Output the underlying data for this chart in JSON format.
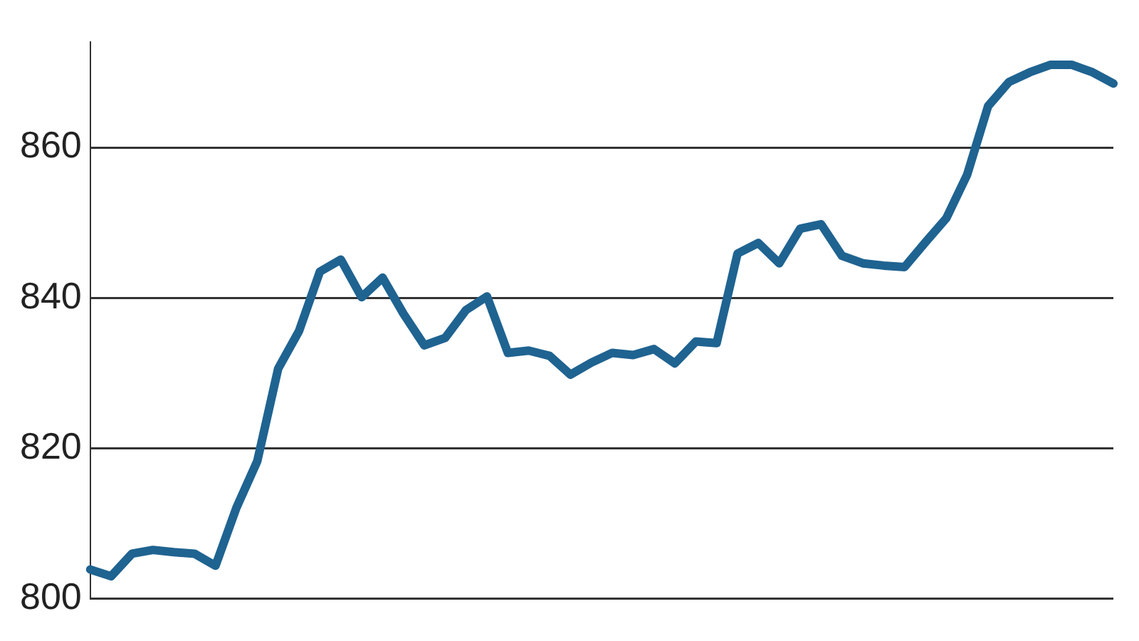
{
  "chart_data": {
    "type": "line",
    "categories": [
      null,
      null,
      null,
      null,
      null,
      null,
      null,
      null,
      null,
      null,
      null,
      null,
      null,
      null,
      null,
      null,
      null,
      null,
      null,
      null,
      null,
      null,
      null,
      null,
      null,
      null,
      null,
      null,
      null,
      null,
      null,
      null,
      null,
      null,
      null,
      null,
      null,
      null,
      null,
      null,
      null,
      null,
      null,
      null,
      null,
      null,
      null,
      null,
      null,
      null
    ],
    "series": [
      {
        "color": "#1f6391",
        "values": [
          803.9,
          803.0,
          806.0,
          806.5,
          806.2,
          806.0,
          804.4,
          812.1,
          818.3,
          830.6,
          835.6,
          843.5,
          845.1,
          840.1,
          842.7,
          837.9,
          833.7,
          834.7,
          838.4,
          840.2,
          832.7,
          833.0,
          832.3,
          829.8,
          831.4,
          832.7,
          832.4,
          833.2,
          831.3,
          834.2,
          834.0,
          845.9,
          847.3,
          844.6,
          849.2,
          849.8,
          845.6,
          844.6,
          844.3,
          844.1,
          847.4,
          850.6,
          856.4,
          865.5,
          868.7,
          870.0,
          871.0,
          871.0,
          870.0,
          868.5
        ]
      }
    ],
    "ylim": [
      800,
      874
    ],
    "yticks": [
      800,
      820,
      840,
      860
    ],
    "grid": "y",
    "tick_labels": "y",
    "line_style": "solid",
    "marker": "none",
    "legend": false
  }
}
